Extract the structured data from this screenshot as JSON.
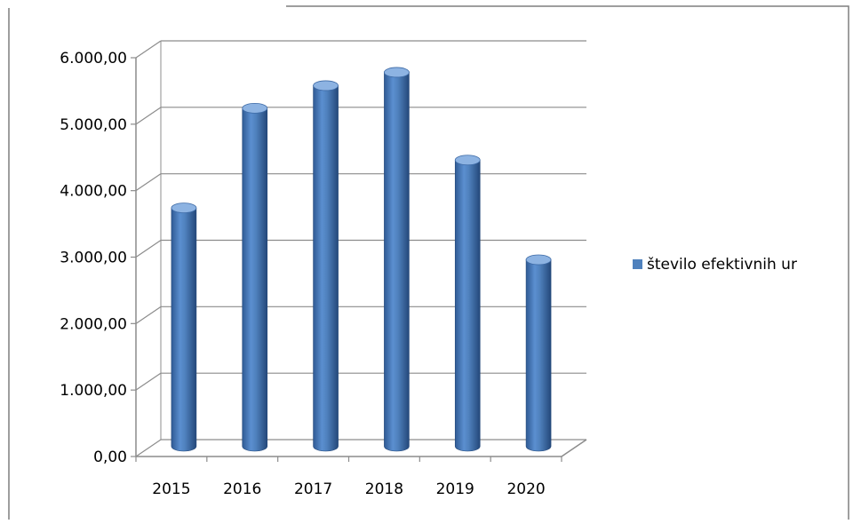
{
  "chart_data": {
    "type": "bar",
    "style": "3d-cylinder",
    "categories": [
      "2015",
      "2016",
      "2017",
      "2018",
      "2019",
      "2020"
    ],
    "series": [
      {
        "name": "število efektivnih ur",
        "values": [
          3720,
          5220,
          5560,
          5760,
          4440,
          2940
        ]
      }
    ],
    "ylim": [
      0,
      6000
    ],
    "yticks": [
      "0,00",
      "1.000,00",
      "2.000,00",
      "3.000,00",
      "4.000,00",
      "5.000,00",
      "6.000,00"
    ],
    "grid": true,
    "legend": "right",
    "colors": {
      "bar": "#4f81bd",
      "bar_dark": "#2b5186",
      "bar_light": "#8db3e2",
      "grid": "#8c8c8c"
    }
  }
}
